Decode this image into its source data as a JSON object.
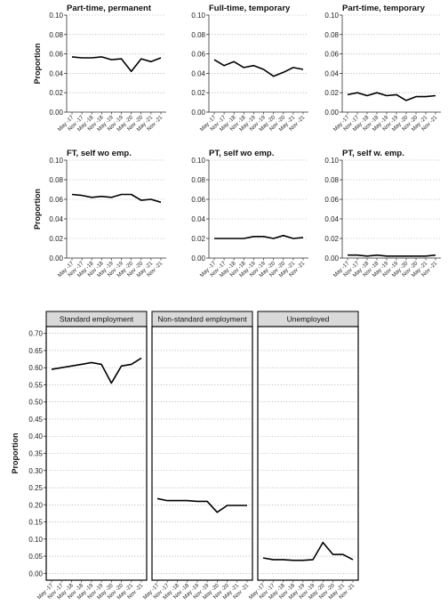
{
  "chart_data": [
    {
      "type": "line",
      "title": "Part-time, permanent",
      "ylabel": "Proportion",
      "x": [
        "May -17",
        "Nov -17",
        "May -18",
        "Nov -18",
        "May -19",
        "Nov -19",
        "May -20",
        "Nov -20",
        "May -21",
        "Nov -21"
      ],
      "values": [
        0.057,
        0.056,
        0.056,
        0.057,
        0.054,
        0.055,
        0.042,
        0.055,
        0.052,
        0.056
      ],
      "ylim": [
        0,
        0.1
      ],
      "yticks": [
        "0.00",
        "0.02",
        "0.04",
        "0.06",
        "0.08",
        "0.10"
      ],
      "grid": true
    },
    {
      "type": "line",
      "title": "Full-time, temporary",
      "ylabel": "",
      "x": [
        "May -17",
        "Nov -17",
        "May -18",
        "Nov -18",
        "May -19",
        "Nov -19",
        "May -20",
        "Nov -20",
        "May -21",
        "Nov -21"
      ],
      "values": [
        0.054,
        0.048,
        0.052,
        0.046,
        0.048,
        0.044,
        0.037,
        0.041,
        0.046,
        0.044
      ],
      "ylim": [
        0,
        0.1
      ],
      "yticks": [
        "0.00",
        "0.02",
        "0.04",
        "0.06",
        "0.08",
        "0.10"
      ],
      "grid": true
    },
    {
      "type": "line",
      "title": "Part-time, temporary",
      "ylabel": "",
      "x": [
        "May -17",
        "Nov -17",
        "May -18",
        "Nov -18",
        "May -19",
        "Nov -19",
        "May -20",
        "Nov -20",
        "May -21",
        "Nov -21"
      ],
      "values": [
        0.018,
        0.02,
        0.017,
        0.02,
        0.017,
        0.018,
        0.012,
        0.016,
        0.016,
        0.017
      ],
      "ylim": [
        0,
        0.1
      ],
      "yticks": [
        "0.00",
        "0.02",
        "0.04",
        "0.06",
        "0.08",
        "0.10"
      ],
      "grid": true
    },
    {
      "type": "line",
      "title": "FT, self wo emp.",
      "ylabel": "Proportion",
      "x": [
        "May -17",
        "Nov -17",
        "May -18",
        "Nov -18",
        "May -19",
        "Nov -19",
        "May -20",
        "Nov -20",
        "May -21",
        "Nov -21"
      ],
      "values": [
        0.065,
        0.064,
        0.062,
        0.063,
        0.062,
        0.065,
        0.065,
        0.059,
        0.06,
        0.057
      ],
      "ylim": [
        0,
        0.1
      ],
      "yticks": [
        "0.00",
        "0.02",
        "0.04",
        "0.06",
        "0.08",
        "0.10"
      ],
      "grid": true
    },
    {
      "type": "line",
      "title": "PT, self wo emp.",
      "ylabel": "",
      "x": [
        "May -17",
        "Nov -17",
        "May -18",
        "Nov -18",
        "May -19",
        "Nov -19",
        "May -20",
        "Nov -20",
        "May -21",
        "Nov -21"
      ],
      "values": [
        0.02,
        0.02,
        0.02,
        0.02,
        0.022,
        0.022,
        0.02,
        0.023,
        0.02,
        0.021
      ],
      "ylim": [
        0,
        0.1
      ],
      "yticks": [
        "0.00",
        "0.02",
        "0.04",
        "0.06",
        "0.08",
        "0.10"
      ],
      "grid": true
    },
    {
      "type": "line",
      "title": "PT, self w. emp.",
      "ylabel": "",
      "x": [
        "May -17",
        "Nov -17",
        "May -18",
        "Nov -18",
        "May -19",
        "Nov -19",
        "May -20",
        "Nov -20",
        "May -21",
        "Nov -21"
      ],
      "values": [
        0.003,
        0.003,
        0.002,
        0.003,
        0.002,
        0.002,
        0.002,
        0.002,
        0.002,
        0.003
      ],
      "ylim": [
        0,
        0.1
      ],
      "yticks": [
        "0.00",
        "0.02",
        "0.04",
        "0.06",
        "0.08",
        "0.10"
      ],
      "grid": true
    },
    {
      "type": "line",
      "title": "Standard employment",
      "ylabel": "Proportion",
      "x": [
        "May -17",
        "Nov -17",
        "May -18",
        "Nov -18",
        "May -19",
        "Nov -19",
        "May -20",
        "Nov -20",
        "May -21",
        "Nov -21"
      ],
      "values": [
        0.595,
        0.6,
        0.605,
        0.61,
        0.615,
        0.61,
        0.555,
        0.605,
        0.61,
        0.628
      ],
      "ylim": [
        -0.02,
        0.72
      ],
      "yticks": [
        "0.00",
        "0.05",
        "0.10",
        "0.15",
        "0.20",
        "0.25",
        "0.30",
        "0.35",
        "0.40",
        "0.45",
        "0.50",
        "0.55",
        "0.60",
        "0.65",
        "0.70"
      ],
      "grid": true
    },
    {
      "type": "line",
      "title": "Non-standard employment",
      "ylabel": "",
      "x": [
        "May -17",
        "Nov -17",
        "May -18",
        "Nov -18",
        "May -19",
        "Nov -19",
        "May -20",
        "Nov -20",
        "May -21",
        "Nov -21"
      ],
      "values": [
        0.218,
        0.212,
        0.212,
        0.212,
        0.21,
        0.21,
        0.178,
        0.198,
        0.198,
        0.198
      ],
      "ylim": [
        -0.02,
        0.72
      ],
      "yticks": [
        "0.00",
        "0.05",
        "0.10",
        "0.15",
        "0.20",
        "0.25",
        "0.30",
        "0.35",
        "0.40",
        "0.45",
        "0.50",
        "0.55",
        "0.60",
        "0.65",
        "0.70"
      ],
      "grid": true
    },
    {
      "type": "line",
      "title": "Unemployed",
      "ylabel": "",
      "x": [
        "May -17",
        "Nov -17",
        "May -18",
        "Nov -18",
        "May -19",
        "Nov -19",
        "May -20",
        "Nov -20",
        "May -21",
        "Nov -21"
      ],
      "values": [
        0.045,
        0.04,
        0.04,
        0.038,
        0.038,
        0.04,
        0.09,
        0.055,
        0.055,
        0.04
      ],
      "ylim": [
        -0.02,
        0.72
      ],
      "yticks": [
        "0.00",
        "0.05",
        "0.10",
        "0.15",
        "0.20",
        "0.25",
        "0.30",
        "0.35",
        "0.40",
        "0.45",
        "0.50",
        "0.55",
        "0.60",
        "0.65",
        "0.70"
      ],
      "grid": true
    }
  ]
}
